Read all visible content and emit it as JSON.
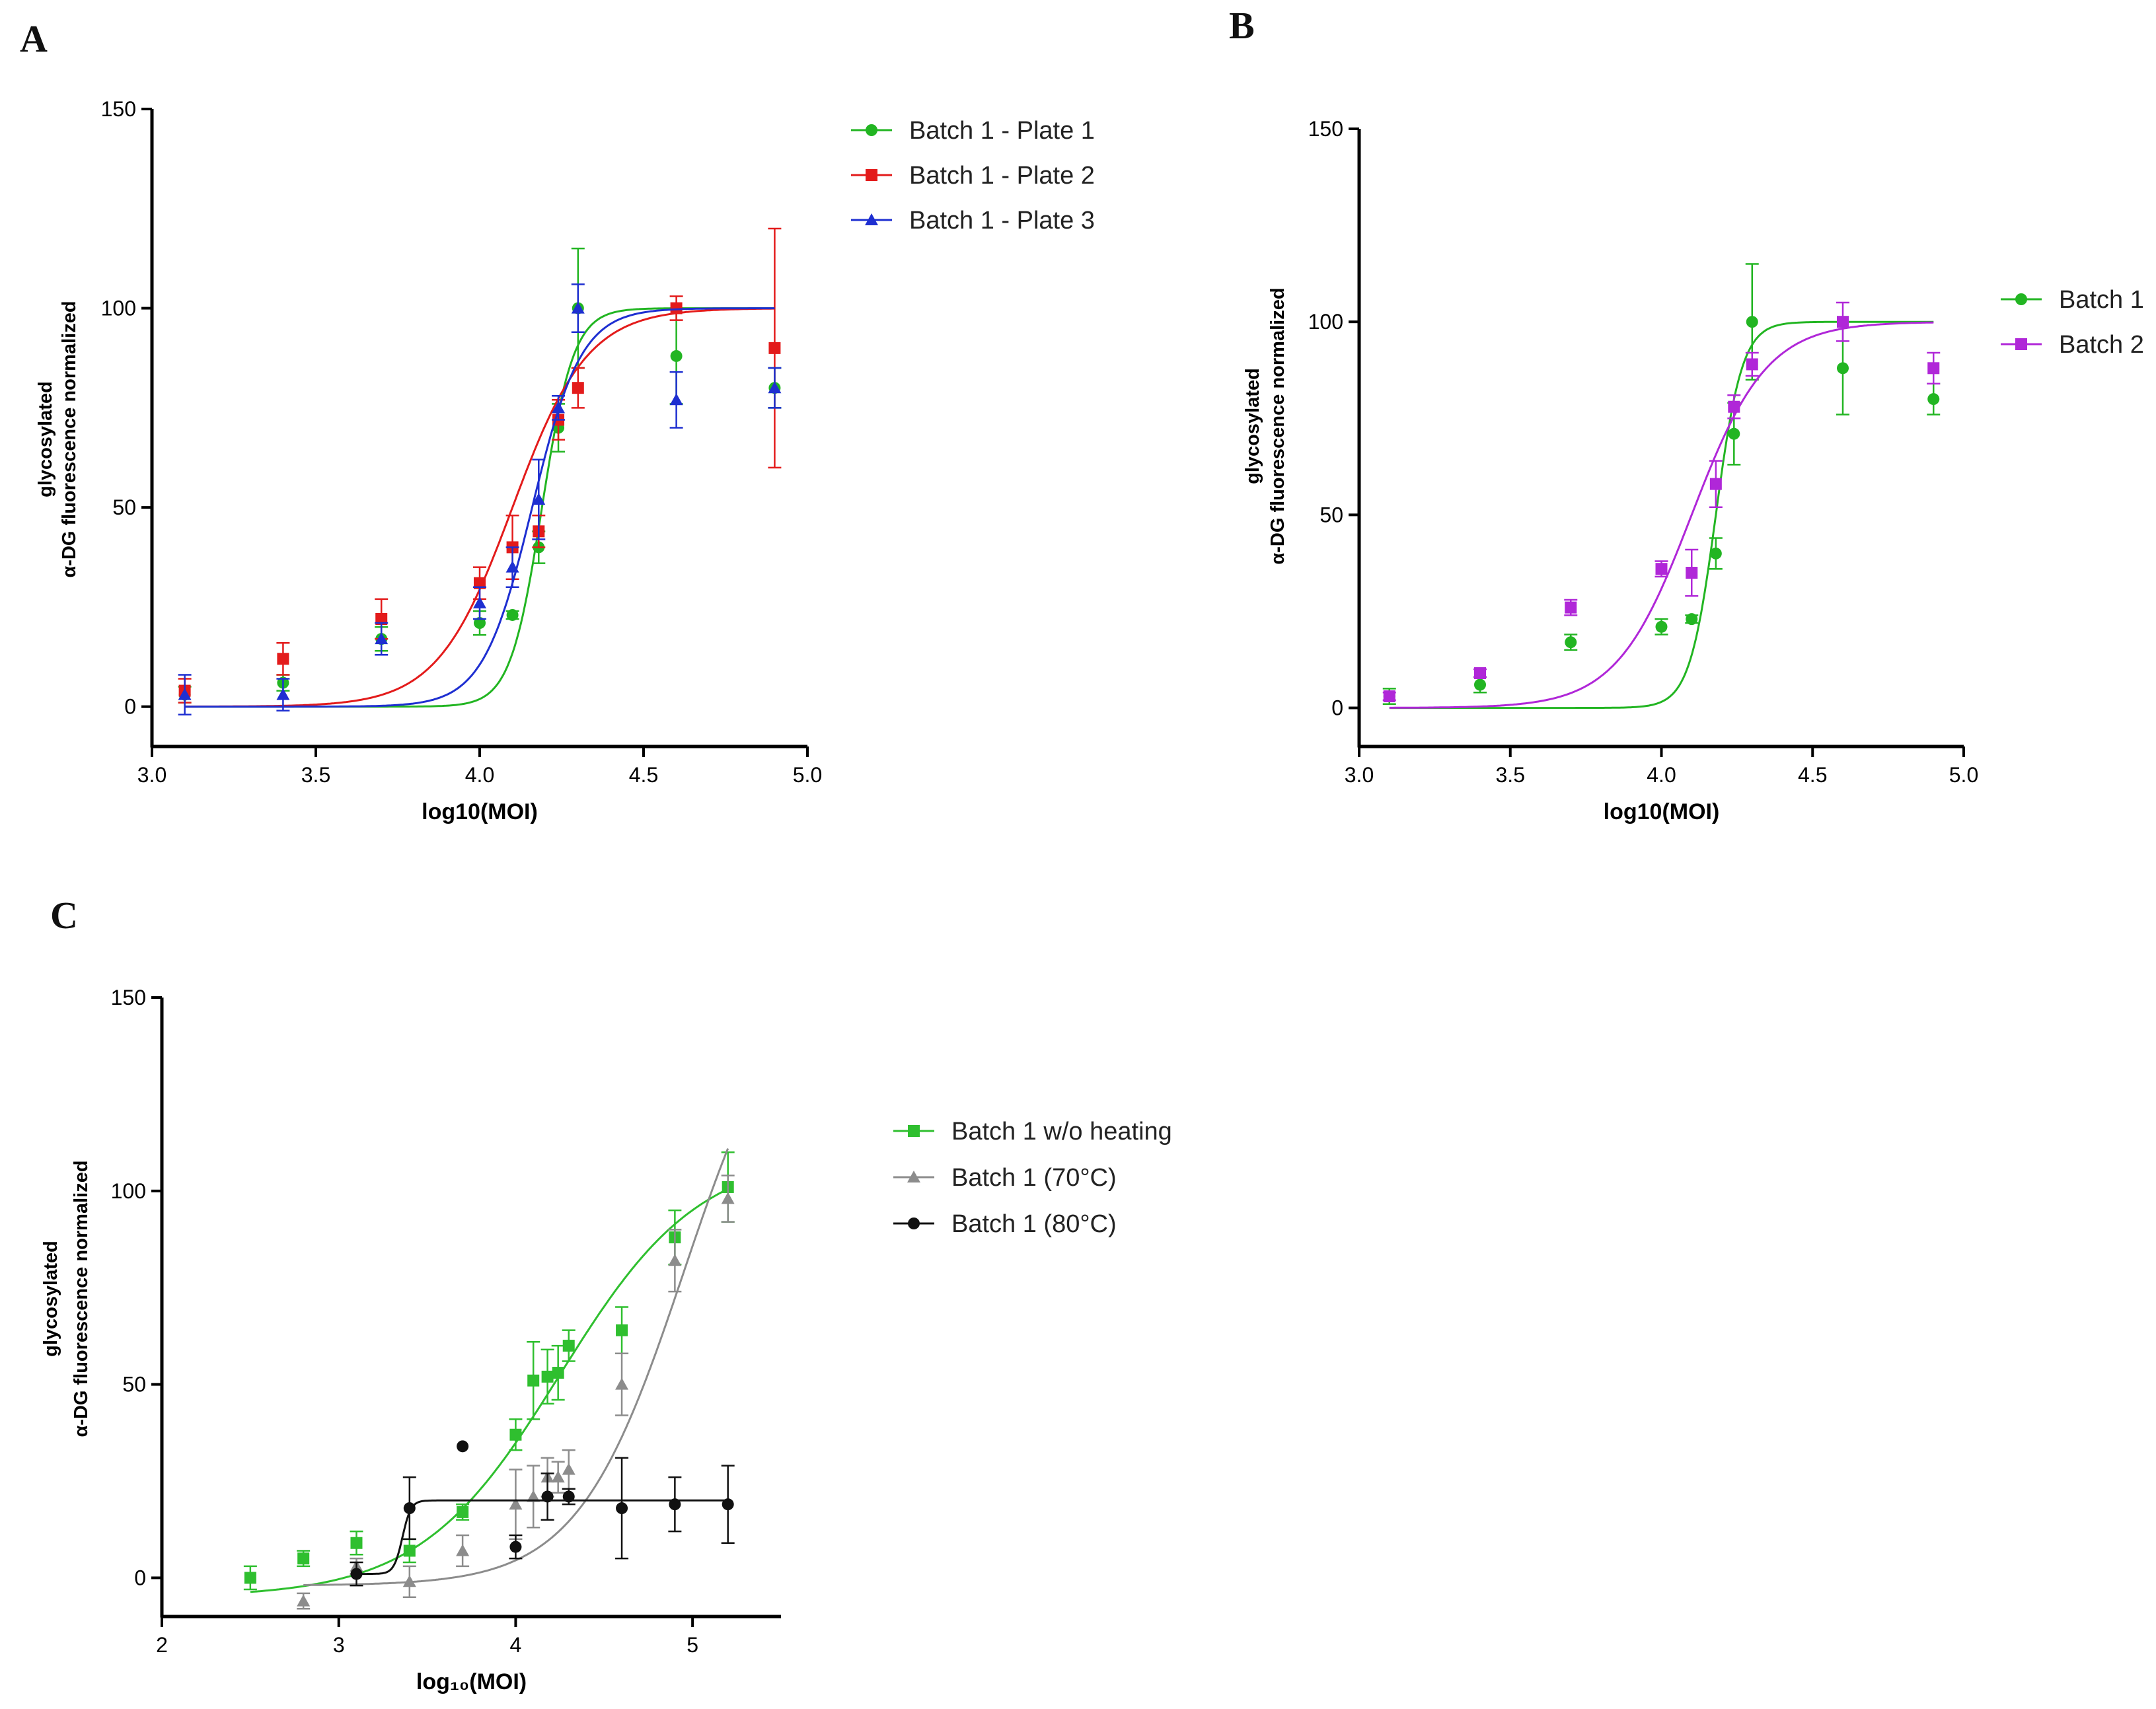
{
  "figure": {
    "panels": [
      {
        "id": "A",
        "letter": "A"
      },
      {
        "id": "B",
        "letter": "B"
      },
      {
        "id": "C",
        "letter": "C"
      }
    ]
  },
  "chart_data": [
    {
      "panel": "A",
      "type": "scatter",
      "title": "",
      "xlabel": "log10(MOI)",
      "ylabel": [
        "glycosylated",
        "α-DG fluorescence normalized"
      ],
      "xlim": [
        3.0,
        5.0
      ],
      "ylim": [
        -10,
        150
      ],
      "xticks": [
        3.0,
        3.5,
        4.0,
        4.5,
        5.0
      ],
      "xtick_labels": [
        "3.0",
        "3.5",
        "4.0",
        "4.5",
        "5.0"
      ],
      "yticks": [
        0,
        50,
        100,
        150
      ],
      "ytick_labels": [
        "0",
        "50",
        "100",
        "150"
      ],
      "legend_position": "top-right outside",
      "series": [
        {
          "name": "Batch 1 - Plate 1",
          "color": "#22b522",
          "marker": "circle",
          "points": [
            [
              3.1,
              3,
              2
            ],
            [
              3.4,
              6,
              2
            ],
            [
              3.7,
              17,
              3
            ],
            [
              4.0,
              21,
              3
            ],
            [
              4.1,
              23,
              1
            ],
            [
              4.18,
              40,
              4
            ],
            [
              4.24,
              70,
              6
            ],
            [
              4.3,
              100,
              15
            ],
            [
              4.6,
              88,
              12
            ],
            [
              4.9,
              80,
              5
            ]
          ],
          "fit": {
            "bottom": 0,
            "top": 100,
            "ec50": 4.19,
            "hill": 9
          }
        },
        {
          "name": "Batch 1 - Plate 2",
          "color": "#e31b1b",
          "marker": "square",
          "points": [
            [
              3.1,
              4,
              3
            ],
            [
              3.4,
              12,
              4
            ],
            [
              3.7,
              22,
              5
            ],
            [
              4.0,
              31,
              4
            ],
            [
              4.1,
              40,
              8
            ],
            [
              4.18,
              44,
              4
            ],
            [
              4.24,
              72,
              5
            ],
            [
              4.3,
              80,
              5
            ],
            [
              4.6,
              100,
              3
            ],
            [
              4.9,
              90,
              30
            ]
          ],
          "fit": {
            "bottom": 0,
            "top": 100,
            "ec50": 4.1,
            "hill": 3.8
          }
        },
        {
          "name": "Batch 1 - Plate 3",
          "color": "#1e2fd1",
          "marker": "triangle",
          "points": [
            [
              3.1,
              3,
              5
            ],
            [
              3.4,
              3,
              4
            ],
            [
              3.7,
              17,
              4
            ],
            [
              4.0,
              26,
              4
            ],
            [
              4.1,
              35,
              5
            ],
            [
              4.18,
              52,
              10
            ],
            [
              4.24,
              75,
              3
            ],
            [
              4.3,
              100,
              6
            ],
            [
              4.6,
              77,
              7
            ],
            [
              4.9,
              80,
              5
            ]
          ],
          "fit": {
            "bottom": 0,
            "top": 100,
            "ec50": 4.16,
            "hill": 5.8
          }
        }
      ]
    },
    {
      "panel": "B",
      "type": "scatter",
      "title": "",
      "xlabel": "log10(MOI)",
      "ylabel": [
        "glycosylated",
        "α-DG fluorescence normalized"
      ],
      "xlim": [
        3.0,
        5.0
      ],
      "ylim": [
        -10,
        150
      ],
      "xticks": [
        3.0,
        3.5,
        4.0,
        4.5,
        5.0
      ],
      "xtick_labels": [
        "3.0",
        "3.5",
        "4.0",
        "4.5",
        "5.0"
      ],
      "yticks": [
        0,
        50,
        100,
        150
      ],
      "ytick_labels": [
        "0",
        "50",
        "100",
        "150"
      ],
      "legend_position": "right",
      "series": [
        {
          "name": "Batch 1",
          "color": "#22b522",
          "marker": "circle",
          "points": [
            [
              3.1,
              3,
              2
            ],
            [
              3.4,
              6,
              2
            ],
            [
              3.7,
              17,
              2
            ],
            [
              4.0,
              21,
              2
            ],
            [
              4.1,
              23,
              1
            ],
            [
              4.18,
              40,
              4
            ],
            [
              4.24,
              71,
              8
            ],
            [
              4.3,
              100,
              15
            ],
            [
              4.6,
              88,
              12
            ],
            [
              4.9,
              80,
              4
            ]
          ],
          "fit": {
            "bottom": 0,
            "top": 100,
            "ec50": 4.18,
            "hill": 10
          }
        },
        {
          "name": "Batch 2",
          "color": "#b027d8",
          "marker": "square",
          "points": [
            [
              3.1,
              3,
              1
            ],
            [
              3.4,
              9,
              1
            ],
            [
              3.7,
              26,
              2
            ],
            [
              4.0,
              36,
              2
            ],
            [
              4.1,
              35,
              6
            ],
            [
              4.18,
              58,
              6
            ],
            [
              4.24,
              78,
              3
            ],
            [
              4.3,
              89,
              3
            ],
            [
              4.6,
              100,
              5
            ],
            [
              4.9,
              88,
              4
            ]
          ],
          "fit": {
            "bottom": 0,
            "top": 100,
            "ec50": 4.1,
            "hill": 3.5
          }
        }
      ]
    },
    {
      "panel": "C",
      "type": "scatter",
      "title": "",
      "xlabel": "log₁₀(MOI)",
      "ylabel": [
        "glycosylated",
        "α-DG fluorescence normalized"
      ],
      "xlim": [
        2,
        5.5
      ],
      "ylim": [
        -10,
        150
      ],
      "xticks": [
        2,
        3,
        4,
        5
      ],
      "xtick_labels": [
        "2",
        "3",
        "4",
        "5"
      ],
      "yticks": [
        0,
        50,
        100,
        150
      ],
      "ytick_labels": [
        "0",
        "50",
        "100",
        "150"
      ],
      "legend_position": "right",
      "series": [
        {
          "name": "Batch 1 w/o heating",
          "color": "#2fbf2f",
          "marker": "square",
          "points": [
            [
              2.5,
              0,
              3
            ],
            [
              2.8,
              5,
              2
            ],
            [
              3.1,
              9,
              3
            ],
            [
              3.4,
              7,
              3
            ],
            [
              3.7,
              17,
              2
            ],
            [
              4.0,
              37,
              4
            ],
            [
              4.1,
              51,
              10
            ],
            [
              4.18,
              52,
              7
            ],
            [
              4.24,
              53,
              7
            ],
            [
              4.3,
              60,
              4
            ],
            [
              4.6,
              64,
              6
            ],
            [
              4.9,
              88,
              7
            ],
            [
              5.2,
              101,
              9
            ]
          ],
          "fit": {
            "bottom": -5,
            "top": 110,
            "ec50": 4.25,
            "hill": 1.1
          }
        },
        {
          "name": "Batch 1 (70°C)",
          "color": "#8c8c8c",
          "marker": "triangle",
          "points": [
            [
              2.8,
              -6,
              2
            ],
            [
              3.1,
              3,
              2
            ],
            [
              3.4,
              -1,
              4
            ],
            [
              3.7,
              7,
              4
            ],
            [
              4.0,
              19,
              9
            ],
            [
              4.1,
              21,
              8
            ],
            [
              4.18,
              26,
              5
            ],
            [
              4.24,
              26,
              4
            ],
            [
              4.3,
              28,
              5
            ],
            [
              4.6,
              50,
              8
            ],
            [
              4.9,
              82,
              8
            ],
            [
              5.2,
              98,
              6
            ]
          ],
          "fit": {
            "bottom": -2,
            "top": 160,
            "ec50": 4.95,
            "hill": 1.45
          }
        },
        {
          "name": "Batch 1 (80°C)",
          "color": "#111111",
          "marker": "circle",
          "points": [
            [
              3.1,
              1,
              3
            ],
            [
              3.4,
              18,
              8
            ],
            [
              3.7,
              34,
              0
            ],
            [
              4.0,
              8,
              3
            ],
            [
              4.18,
              21,
              6
            ],
            [
              4.3,
              21,
              2
            ],
            [
              4.6,
              18,
              13
            ],
            [
              4.9,
              19,
              7
            ],
            [
              5.2,
              19,
              10
            ]
          ],
          "fit": {
            "bottom": 1,
            "top": 20,
            "ec50": 3.36,
            "hill": 18
          }
        }
      ]
    }
  ]
}
